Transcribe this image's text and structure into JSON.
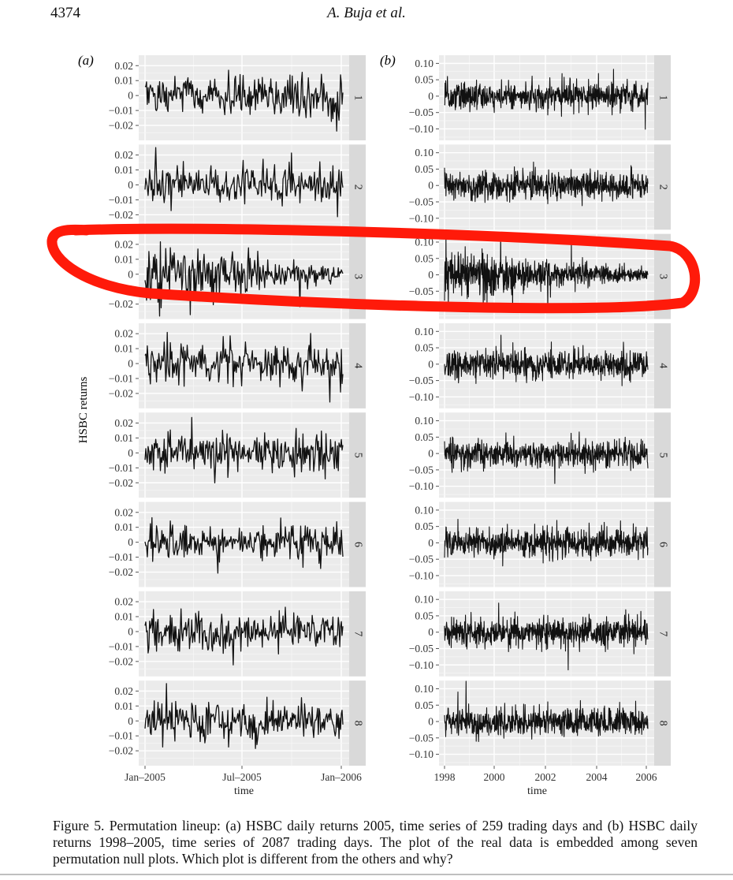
{
  "header": {
    "page_number": "4374",
    "running_head": "A. Buja et al."
  },
  "figure": {
    "y_axis_label": "HSBC returns",
    "colors": {
      "panel_bg": "#ebebeb",
      "grid": "#ffffff",
      "strip_bg": "#d9d9d9",
      "series": "#111111",
      "annotation": "#ff1a0a"
    },
    "annotation": {
      "shape": "hand-drawn ellipse",
      "circled_panel": "3"
    },
    "panels": [
      {
        "id": "a",
        "panel_label": "(a)",
        "x_title": "time",
        "x_ticks": [
          "Jan–2005",
          "Jul–2005",
          "Jan–2006"
        ],
        "y_ticks": [
          "0.02",
          "0.01",
          "0",
          "−0.01",
          "−0.02"
        ],
        "y_range": [
          -0.03,
          0.027
        ],
        "facets": [
          "1",
          "2",
          "3",
          "4",
          "5",
          "6",
          "7",
          "8"
        ],
        "n_points": 259
      },
      {
        "id": "b",
        "panel_label": "(b)",
        "x_title": "time",
        "x_ticks": [
          "1998",
          "2000",
          "2002",
          "2004",
          "2006"
        ],
        "y_ticks": [
          "0.10",
          "0.05",
          "0",
          "−0.05",
          "−0.10"
        ],
        "y_range": [
          -0.135,
          0.125
        ],
        "facets": [
          "1",
          "2",
          "3",
          "4",
          "5",
          "6",
          "7",
          "8"
        ],
        "n_points": 2087
      }
    ]
  },
  "chart_data": [
    {
      "type": "line",
      "panel": "(a)",
      "facets": [
        "1",
        "2",
        "3",
        "4",
        "5",
        "6",
        "7",
        "8"
      ],
      "x": [
        "Jan–2005",
        "Jul–2005",
        "Jan–2006"
      ],
      "xlabel": "time",
      "ylabel": "HSBC returns",
      "ylim": [
        -0.03,
        0.027
      ],
      "y_ticks": [
        -0.02,
        -0.01,
        0,
        0.01,
        0.02
      ],
      "series_length": 259,
      "grid": true
    },
    {
      "type": "line",
      "panel": "(b)",
      "facets": [
        "1",
        "2",
        "3",
        "4",
        "5",
        "6",
        "7",
        "8"
      ],
      "x": [
        1998,
        2000,
        2002,
        2004,
        2006
      ],
      "xlabel": "time",
      "ylabel": "HSBC returns",
      "ylim": [
        -0.135,
        0.125
      ],
      "y_ticks": [
        -0.1,
        -0.05,
        0,
        0.05,
        0.1
      ],
      "series_length": 2087,
      "grid": true
    }
  ],
  "caption": {
    "text": "Figure 5. Permutation lineup: (a) HSBC daily returns 2005, time series of 259 trading days and (b) HSBC daily returns 1998–2005, time series of 2087 trading days. The plot of the real data is embedded among seven permutation null plots. Which plot is different from the others and why?"
  }
}
